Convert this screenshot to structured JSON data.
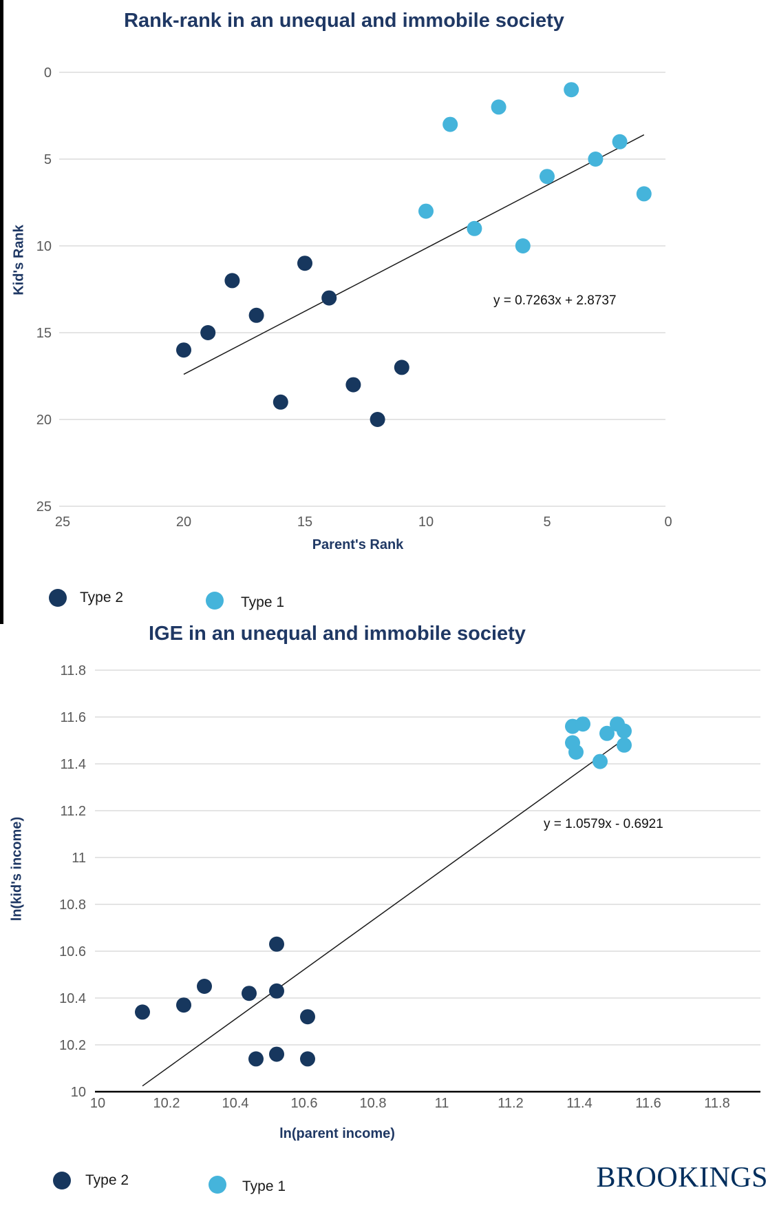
{
  "page": {
    "logo_text": "BROOKINGS"
  },
  "chart_data": [
    {
      "type": "scatter",
      "title": "Rank-rank in an unequal and immobile society",
      "xlabel": "Parent's Rank",
      "ylabel": "Kid's Rank",
      "x_axis_reversed": true,
      "y_axis_reversed": true,
      "xlim": [
        25,
        0
      ],
      "ylim": [
        0,
        25
      ],
      "x_ticks": [
        25,
        20,
        15,
        10,
        5,
        0
      ],
      "y_ticks": [
        0,
        5,
        10,
        15,
        20,
        25
      ],
      "grid": "horizontal",
      "legend_position": "bottom-left",
      "trendline": {
        "equation": "y = 0.7263x + 2.8737",
        "slope": 0.7263,
        "intercept": 2.8737,
        "x_start": 20,
        "x_end": 1
      },
      "series": [
        {
          "name": "Type 2",
          "color": "#17375E",
          "points": [
            [
              11,
              17
            ],
            [
              12,
              20
            ],
            [
              13,
              18
            ],
            [
              14,
              13
            ],
            [
              15,
              11
            ],
            [
              16,
              19
            ],
            [
              17,
              14
            ],
            [
              18,
              12
            ],
            [
              19,
              15
            ],
            [
              20,
              16
            ]
          ]
        },
        {
          "name": "Type 1",
          "color": "#45B4DB",
          "points": [
            [
              1,
              7
            ],
            [
              2,
              4
            ],
            [
              3,
              5
            ],
            [
              4,
              1
            ],
            [
              5,
              6
            ],
            [
              6,
              10
            ],
            [
              7,
              2
            ],
            [
              8,
              9
            ],
            [
              9,
              3
            ],
            [
              10,
              8
            ]
          ]
        }
      ]
    },
    {
      "type": "scatter",
      "title": "IGE in an unequal and immobile society",
      "xlabel": "ln(parent income)",
      "ylabel": "ln(kid's income)",
      "xlim": [
        10,
        11.8
      ],
      "ylim": [
        10,
        11.8
      ],
      "x_ticks": [
        10,
        10.2,
        10.4,
        10.6,
        10.8,
        11,
        11.2,
        11.4,
        11.6,
        11.8
      ],
      "y_ticks": [
        11.8,
        11.6,
        11.4,
        11.2,
        11,
        10.8,
        10.6,
        10.4,
        10.2,
        10
      ],
      "grid": "horizontal",
      "legend_position": "bottom-left",
      "trendline": {
        "equation": "y = 1.0579x - 0.6921",
        "slope": 1.0579,
        "intercept": -0.6921,
        "x_start": 10.13,
        "x_end": 11.54
      },
      "series": [
        {
          "name": "Type 2",
          "color": "#17375E",
          "points": [
            [
              10.13,
              10.34
            ],
            [
              10.25,
              10.37
            ],
            [
              10.31,
              10.45
            ],
            [
              10.44,
              10.42
            ],
            [
              10.46,
              10.14
            ],
            [
              10.52,
              10.63
            ],
            [
              10.52,
              10.43
            ],
            [
              10.52,
              10.16
            ],
            [
              10.61,
              10.32
            ],
            [
              10.61,
              10.14
            ]
          ]
        },
        {
          "name": "Type 1",
          "color": "#45B4DB",
          "points": [
            [
              11.38,
              11.56
            ],
            [
              11.41,
              11.57
            ],
            [
              11.38,
              11.49
            ],
            [
              11.39,
              11.45
            ],
            [
              11.46,
              11.41
            ],
            [
              11.48,
              11.53
            ],
            [
              11.51,
              11.57
            ],
            [
              11.53,
              11.54
            ],
            [
              11.53,
              11.48
            ]
          ]
        }
      ]
    }
  ]
}
